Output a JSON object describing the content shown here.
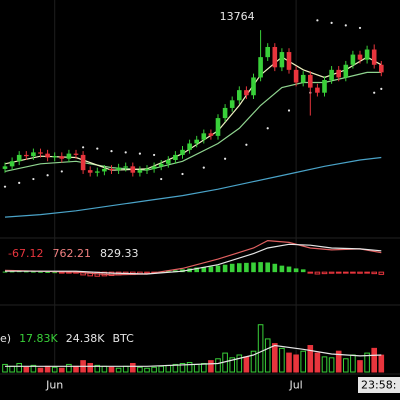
{
  "chart_data": {
    "type": "candlestick",
    "categories": [
      null,
      null,
      null,
      null,
      null,
      null,
      null,
      "Jun",
      null,
      null,
      null,
      null,
      null,
      null,
      null,
      null,
      null,
      null,
      null,
      null,
      null,
      null,
      null,
      null,
      null,
      null,
      null,
      null,
      null,
      null,
      null,
      null,
      null,
      null,
      null,
      null,
      null,
      null,
      null,
      null,
      null,
      "Jul",
      null,
      null,
      null,
      null,
      null,
      null,
      null,
      null,
      null,
      null,
      null,
      null
    ],
    "clock": "23:58:",
    "up_color": "#39d039",
    "down_color": "#e8353d",
    "price": {
      "ylim": [
        5500,
        14950
      ],
      "open": [
        8300,
        8400,
        8600,
        8850,
        8800,
        8950,
        8900,
        8750,
        8800,
        8700,
        8900,
        8850,
        8250,
        8150,
        8200,
        8300,
        8250,
        8350,
        8400,
        8150,
        8250,
        8300,
        8400,
        8500,
        8650,
        8850,
        9050,
        9300,
        9450,
        9700,
        9600,
        10300,
        10700,
        11000,
        11400,
        11200,
        11900,
        12700,
        13100,
        12300,
        12900,
        12200,
        11700,
        12000,
        11500,
        11300,
        11800,
        12200,
        11900,
        12400,
        12800,
        12600,
        13000,
        12400
      ],
      "high": [
        8550,
        8750,
        9000,
        9000,
        9100,
        9100,
        9050,
        8950,
        8950,
        9050,
        9050,
        9000,
        8400,
        8350,
        8450,
        8450,
        8500,
        8550,
        8550,
        8400,
        8450,
        8550,
        8650,
        8800,
        9000,
        9200,
        9450,
        9600,
        9850,
        9850,
        10450,
        10850,
        11150,
        11550,
        11550,
        12050,
        13764,
        13250,
        13250,
        13050,
        13050,
        12350,
        12150,
        12150,
        11650,
        11950,
        12350,
        12350,
        12550,
        12950,
        12950,
        13150,
        13200,
        12550
      ],
      "low": [
        8150,
        8250,
        8450,
        8650,
        8650,
        8750,
        8600,
        8600,
        8550,
        8550,
        8700,
        8100,
        8000,
        8000,
        8050,
        8100,
        8100,
        8200,
        8000,
        8000,
        8100,
        8150,
        8250,
        8350,
        8500,
        8700,
        8900,
        9150,
        9300,
        9450,
        9450,
        10150,
        10550,
        10850,
        11050,
        11050,
        11750,
        12550,
        12150,
        12150,
        12050,
        11550,
        11550,
        10400,
        11150,
        11150,
        11650,
        11750,
        11750,
        12250,
        12450,
        12450,
        12250,
        11950
      ],
      "close": [
        8400,
        8600,
        8850,
        8800,
        8950,
        8900,
        8750,
        8800,
        8700,
        8900,
        8850,
        8250,
        8150,
        8200,
        8300,
        8250,
        8350,
        8400,
        8150,
        8250,
        8300,
        8400,
        8500,
        8650,
        8850,
        9050,
        9300,
        9450,
        9700,
        9600,
        10300,
        10700,
        11000,
        11400,
        11200,
        11900,
        12700,
        13100,
        12300,
        12900,
        12200,
        11700,
        12000,
        11500,
        11300,
        11800,
        12200,
        11900,
        12400,
        12800,
        12600,
        13000,
        12400,
        12100
      ],
      "lines": [
        {
          "color": "#4aa3c8",
          "x": [
            0,
            5,
            10,
            15,
            20,
            25,
            30,
            35,
            40,
            45,
            50,
            53
          ],
          "values": [
            6400,
            6500,
            6650,
            6850,
            7050,
            7250,
            7500,
            7800,
            8100,
            8400,
            8650,
            8750
          ]
        },
        {
          "color": "#8fd48f",
          "x": [
            0,
            5,
            10,
            15,
            20,
            25,
            30,
            33,
            36,
            39,
            42,
            45,
            48,
            51,
            53
          ],
          "values": [
            8200,
            8500,
            8600,
            8350,
            8250,
            8600,
            9300,
            9900,
            10800,
            11500,
            11700,
            11700,
            11900,
            12100,
            12100
          ]
        },
        {
          "color": "#eef3c0",
          "x": [
            0,
            5,
            10,
            15,
            20,
            25,
            30,
            33,
            36,
            39,
            42,
            45,
            48,
            51,
            53
          ],
          "values": [
            8500,
            8800,
            8750,
            8250,
            8300,
            8900,
            9800,
            10800,
            12000,
            12700,
            12200,
            11900,
            12200,
            12700,
            12400
          ]
        }
      ],
      "sar": {
        "color": "#e6e6e6",
        "x": [
          0,
          2,
          4,
          6,
          8,
          11,
          13,
          15,
          17,
          19,
          21,
          22,
          25,
          28,
          31,
          34,
          37,
          40,
          43,
          44,
          46,
          48,
          50,
          52,
          53
        ],
        "values": [
          7600,
          7750,
          7900,
          8050,
          8200,
          9150,
          9100,
          9000,
          8950,
          8900,
          8850,
          7900,
          8100,
          8350,
          8700,
          9250,
          9900,
          10600,
          11300,
          14150,
          14050,
          13950,
          13850,
          11300,
          11450
        ]
      }
    },
    "macd": {
      "ylim": [
        -1500,
        2000
      ],
      "readout": [
        -67.12,
        762.21,
        829.33
      ],
      "readout_colors": [
        "#e8353d",
        "#f08080",
        "#e6e6e6"
      ],
      "histogram": [
        30,
        40,
        50,
        40,
        30,
        20,
        10,
        0,
        -20,
        -30,
        -40,
        -150,
        -200,
        -220,
        -200,
        -180,
        -150,
        -120,
        -130,
        -100,
        -60,
        -20,
        20,
        60,
        100,
        150,
        200,
        250,
        280,
        300,
        350,
        400,
        450,
        480,
        500,
        520,
        540,
        520,
        450,
        350,
        300,
        200,
        150,
        -50,
        -100,
        -80,
        -60,
        -40,
        -30,
        -50,
        -60,
        -40,
        -80,
        -120
      ],
      "lines": [
        {
          "color": "#e06060",
          "x": [
            0,
            10,
            15,
            20,
            25,
            30,
            35,
            37,
            40,
            43,
            46,
            50,
            53
          ],
          "values": [
            100,
            0,
            -150,
            -100,
            200,
            700,
            1300,
            1700,
            1600,
            1300,
            1200,
            1250,
            1050
          ]
        },
        {
          "color": "#e6e6e6",
          "x": [
            0,
            10,
            15,
            20,
            25,
            30,
            35,
            37,
            40,
            43,
            46,
            50,
            53
          ],
          "values": [
            50,
            50,
            -50,
            -100,
            50,
            400,
            1000,
            1300,
            1500,
            1450,
            1300,
            1250,
            1150
          ]
        }
      ]
    },
    "volume": {
      "ylim": [
        0,
        55000
      ],
      "legend": [
        "e)",
        "17.83K",
        "24.38K",
        "BTC"
      ],
      "legend_colors": [
        "#e6e6e6",
        "#39d039",
        "#e6e6e6",
        "#e6e6e6"
      ],
      "values": [
        8000,
        6000,
        9000,
        5000,
        7000,
        4000,
        6000,
        5000,
        4000,
        8000,
        6000,
        12000,
        9000,
        7000,
        6000,
        5000,
        4000,
        6000,
        9000,
        5000,
        4000,
        5000,
        6000,
        7000,
        8000,
        9000,
        10000,
        8000,
        9000,
        12000,
        14000,
        20000,
        15000,
        18000,
        16000,
        22000,
        50000,
        35000,
        30000,
        25000,
        20000,
        18000,
        22000,
        28000,
        20000,
        16000,
        15000,
        22000,
        14000,
        18000,
        12000,
        20000,
        25000,
        17830
      ],
      "line": {
        "color": "#e6e6e6",
        "x": [
          0,
          10,
          20,
          30,
          35,
          38,
          42,
          46,
          50,
          53
        ],
        "values": [
          6000,
          6000,
          6000,
          9000,
          18000,
          28000,
          24000,
          19000,
          17000,
          18000
        ]
      }
    }
  }
}
